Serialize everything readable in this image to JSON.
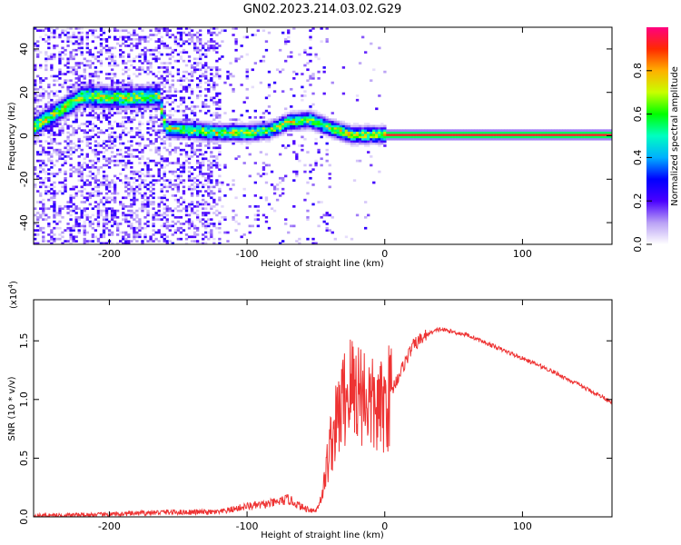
{
  "title": "GN02.2023.214.03.02.G29",
  "chart_data": [
    {
      "type": "heatmap",
      "xlabel": "Height of straight line (km)",
      "ylabel": "Frequency (Hz)",
      "xlim": [
        -255,
        165
      ],
      "ylim": [
        -50,
        50
      ],
      "xticks": [
        -200,
        -100,
        0,
        100
      ],
      "yticks": [
        -40,
        -20,
        0,
        20,
        40
      ],
      "colorbar": {
        "label": "Normalized spectral amplitude",
        "range": [
          0,
          1
        ],
        "ticks": [
          "0.0",
          "0.2",
          "0.4",
          "0.6",
          "0.8"
        ],
        "colors": [
          "#ffffff",
          "#b9a0f5",
          "#4a00ff",
          "#0000ff",
          "#00b0ff",
          "#00ffc0",
          "#00ff00",
          "#c8ff00",
          "#ffb000",
          "#ff2a00",
          "#ff0080"
        ]
      },
      "ridge": [
        {
          "x": -255,
          "y": 4
        },
        {
          "x": -220,
          "y": 18
        },
        {
          "x": -190,
          "y": 17
        },
        {
          "x": -165,
          "y": 18
        },
        {
          "x": -160,
          "y": 3
        },
        {
          "x": -120,
          "y": 1
        },
        {
          "x": -100,
          "y": 1
        },
        {
          "x": -85,
          "y": 2
        },
        {
          "x": -70,
          "y": 6
        },
        {
          "x": -55,
          "y": 7
        },
        {
          "x": -40,
          "y": 3
        },
        {
          "x": -25,
          "y": 0
        },
        {
          "x": -10,
          "y": 0
        },
        {
          "x": 0,
          "y": 0
        },
        {
          "x": 165,
          "y": 0
        }
      ]
    },
    {
      "type": "line",
      "xlabel": "Height of straight line (km)",
      "ylabel": "SNR (10 * v/v)",
      "scale_label": "(x10",
      "scale_exp": "4",
      "scale_close": ")",
      "xlim": [
        -255,
        165
      ],
      "ylim": [
        0,
        1.85
      ],
      "xticks": [
        -200,
        -100,
        0,
        100
      ],
      "yticks": [
        "0.0",
        "0.5",
        "1.0",
        "1.5"
      ],
      "color": "#ee3333",
      "series": [
        {
          "x": [
            -255,
            -200,
            -160,
            -120,
            -100,
            -90,
            -80,
            -70,
            -60,
            -50,
            -45,
            -40,
            -35,
            -30,
            -25,
            -20,
            -15,
            -10,
            -5,
            0,
            10,
            20,
            30,
            40,
            60,
            80,
            100,
            120,
            140,
            165
          ],
          "values": [
            0.01,
            0.02,
            0.04,
            0.04,
            0.09,
            0.1,
            0.12,
            0.15,
            0.08,
            0.05,
            0.2,
            0.6,
            0.8,
            1.0,
            1.1,
            1.1,
            1.05,
            0.95,
            0.9,
            0.95,
            1.2,
            1.45,
            1.55,
            1.6,
            1.55,
            1.45,
            1.35,
            1.25,
            1.13,
            0.98
          ]
        }
      ]
    }
  ]
}
